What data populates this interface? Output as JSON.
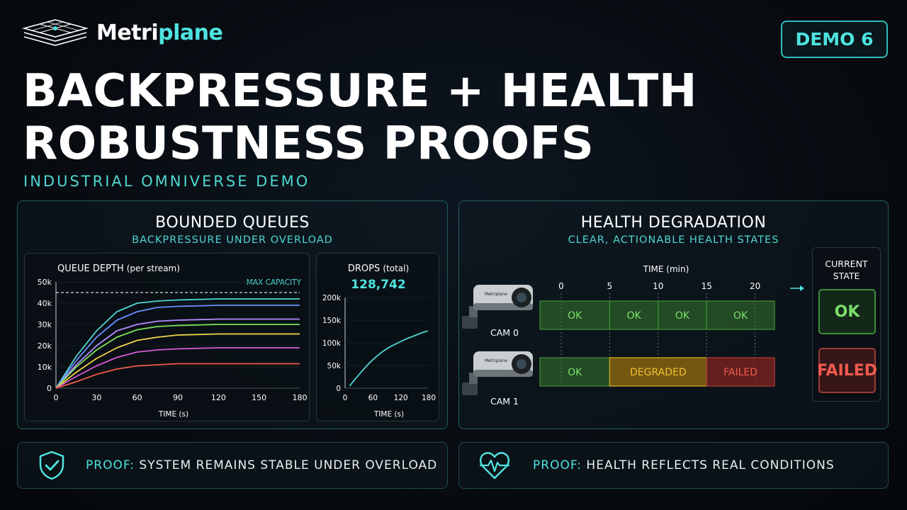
{
  "brand": {
    "name_a": "Metri",
    "name_b": "plane"
  },
  "badge": "DEMO 6",
  "title": {
    "line1": "BACKPRESSURE + HEALTH",
    "line2": "ROBUSTNESS PROOFS"
  },
  "subtitle": "INDUSTRIAL OMNIVERSE DEMO",
  "left_panel": {
    "title": "BOUNDED QUEUES",
    "subtitle": "BACKPRESSURE UNDER OVERLOAD",
    "queue_chart": {
      "title_main": "QUEUE DEPTH",
      "title_note": "(per stream)",
      "max_label": "MAX CAPACITY",
      "xlabel": "TIME (s)"
    },
    "drops_chart": {
      "title_main": "DROPS",
      "title_note": "(total)",
      "total": "128,742",
      "xlabel": "TIME (s)"
    }
  },
  "right_panel": {
    "title": "HEALTH DEGRADATION",
    "subtitle": "CLEAR, ACTIONABLE HEALTH STATES",
    "time_label": "TIME (min)",
    "ticks": [
      "0",
      "5",
      "10",
      "15",
      "20"
    ],
    "cameras": [
      {
        "label": "CAM 0",
        "brand": "Metriplane"
      },
      {
        "label": "CAM 1",
        "brand": "Metriplane"
      }
    ],
    "current_state": {
      "label_line1": "CURRENT",
      "label_line2": "STATE",
      "cam0": "OK",
      "cam1": "FAILED"
    }
  },
  "proofs": {
    "left": {
      "keyword": "PROOF:",
      "text": " SYSTEM REMAINS STABLE UNDER OVERLOAD"
    },
    "right": {
      "keyword": "PROOF:",
      "text": " HEALTH REFLECTS REAL CONDITIONS"
    }
  },
  "colors": {
    "accent": "#4fe3e0",
    "ok": "#7be06a",
    "degraded": "#f2c12e",
    "failed": "#ef5a4f"
  },
  "chart_data": [
    {
      "type": "line",
      "title": "QUEUE DEPTH (per stream)",
      "xlabel": "TIME (s)",
      "ylabel": "",
      "xlim": [
        0,
        180
      ],
      "ylim": [
        0,
        50000
      ],
      "x_ticks": [
        0,
        30,
        60,
        90,
        120,
        150,
        180
      ],
      "y_ticks": [
        0,
        10000,
        20000,
        30000,
        40000,
        50000
      ],
      "y_tick_labels": [
        "0",
        "10k",
        "20k",
        "30k",
        "40k",
        "50k"
      ],
      "annotation": {
        "label": "MAX CAPACITY",
        "y": 45000
      },
      "x": [
        0,
        15,
        30,
        45,
        60,
        75,
        90,
        120,
        150,
        180
      ],
      "series": [
        {
          "color": "#4fd6d2",
          "values": [
            0,
            15000,
            27000,
            36000,
            40000,
            41000,
            41500,
            42000,
            42000,
            42000
          ]
        },
        {
          "color": "#6b8cff",
          "values": [
            0,
            13000,
            24000,
            32000,
            36000,
            38000,
            38500,
            39000,
            39000,
            39000
          ]
        },
        {
          "color": "#b68cff",
          "values": [
            0,
            11000,
            20000,
            27000,
            30000,
            31500,
            32000,
            32500,
            32500,
            32500
          ]
        },
        {
          "color": "#7ee05c",
          "values": [
            0,
            10000,
            18000,
            24000,
            27500,
            29000,
            29500,
            30000,
            30000,
            30000
          ]
        },
        {
          "color": "#f2d34a",
          "values": [
            0,
            7500,
            14000,
            19000,
            22500,
            24000,
            25000,
            25500,
            25500,
            25500
          ]
        },
        {
          "color": "#d65ad6",
          "values": [
            0,
            5500,
            10500,
            14500,
            17000,
            18000,
            18500,
            19000,
            19000,
            19000
          ]
        },
        {
          "color": "#ef5a4f",
          "values": [
            0,
            3000,
            6500,
            9000,
            10500,
            11000,
            11500,
            11500,
            11500,
            11500
          ]
        }
      ]
    },
    {
      "type": "line",
      "title": "DROPS (total)",
      "xlabel": "TIME (s)",
      "xlim": [
        0,
        180
      ],
      "ylim": [
        0,
        200000
      ],
      "x_ticks": [
        0,
        60,
        120,
        180
      ],
      "y_ticks": [
        0,
        50000,
        100000,
        150000,
        200000
      ],
      "y_tick_labels": [
        "0",
        "50k",
        "100k",
        "150k",
        "200k"
      ],
      "x": [
        10,
        20,
        30,
        40,
        50,
        60,
        70,
        80,
        90,
        100,
        110,
        120,
        130,
        140,
        150,
        160,
        170,
        178
      ],
      "series": [
        {
          "color": "#4fd6d2",
          "values": [
            5000,
            18000,
            30000,
            42000,
            53000,
            63000,
            72000,
            80000,
            87000,
            93000,
            98000,
            103000,
            108000,
            112000,
            116000,
            120000,
            124000,
            126000
          ]
        }
      ]
    },
    {
      "type": "timeline",
      "title": "HEALTH DEGRADATION",
      "xlabel": "TIME (min)",
      "xlim": [
        0,
        22
      ],
      "x_ticks": [
        0,
        5,
        10,
        15,
        20
      ],
      "rows": [
        {
          "name": "CAM 0",
          "segments": [
            {
              "start": 0,
              "end": 5,
              "state": "OK"
            },
            {
              "start": 5,
              "end": 10,
              "state": "OK"
            },
            {
              "start": 10,
              "end": 15,
              "state": "OK"
            },
            {
              "start": 15,
              "end": 22,
              "state": "OK"
            }
          ]
        },
        {
          "name": "CAM 1",
          "segments": [
            {
              "start": 0,
              "end": 5,
              "state": "OK"
            },
            {
              "start": 5,
              "end": 15,
              "state": "DEGRADED"
            },
            {
              "start": 15,
              "end": 22,
              "state": "FAILED"
            }
          ]
        }
      ]
    }
  ]
}
